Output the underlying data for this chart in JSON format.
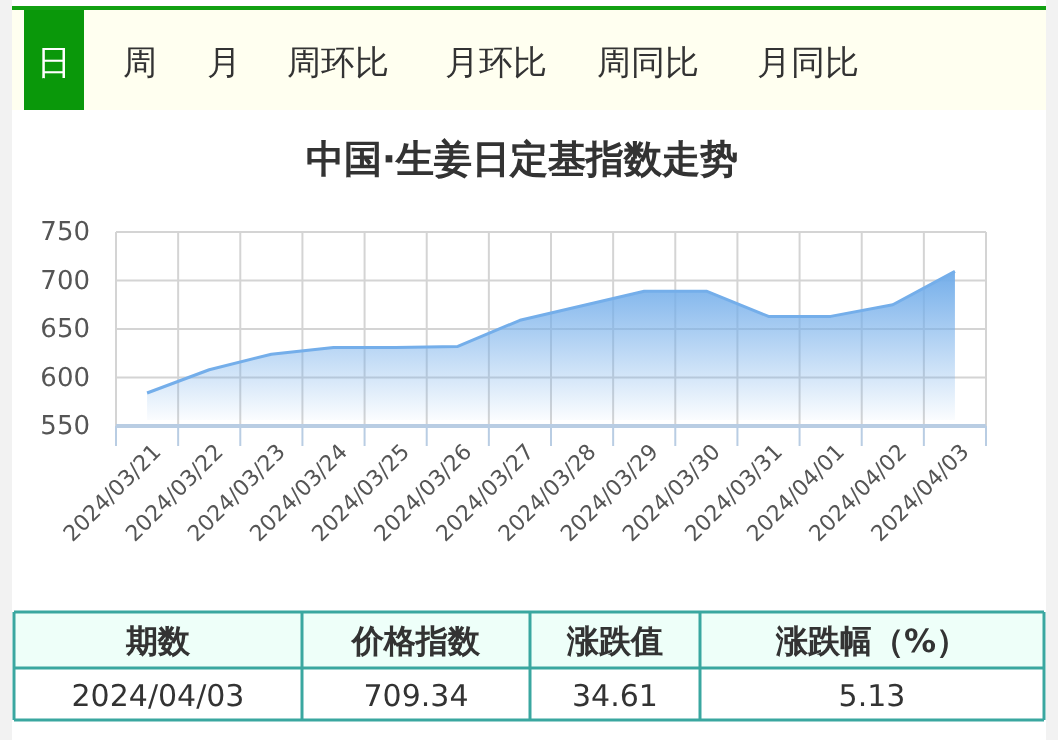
{
  "chart_data": {
    "type": "area",
    "title": "中国·生姜日定基指数走势",
    "categories": [
      "2024/03/21",
      "2024/03/22",
      "2024/03/23",
      "2024/03/24",
      "2024/03/25",
      "2024/03/26",
      "2024/03/27",
      "2024/03/28",
      "2024/03/29",
      "2024/03/30",
      "2024/03/31",
      "2024/04/01",
      "2024/04/02",
      "2024/04/03"
    ],
    "series": [
      {
        "color": "#74aeea",
        "values": [
          584,
          608,
          624,
          631,
          631,
          632,
          659,
          674,
          689,
          689,
          663,
          663,
          675,
          709.34
        ]
      }
    ],
    "ylim": [
      550,
      750
    ],
    "yticks": [
      550,
      600,
      650,
      700,
      750
    ],
    "grid": true,
    "annotations": [
      "日",
      "周",
      "月",
      "周环比",
      "月环比",
      "周同比",
      "月同比",
      "期数",
      "价格指数",
      "涨跌值",
      "涨跌幅（%）",
      "2024/04/03",
      "709.34",
      "34.61",
      "5.13"
    ]
  }
}
